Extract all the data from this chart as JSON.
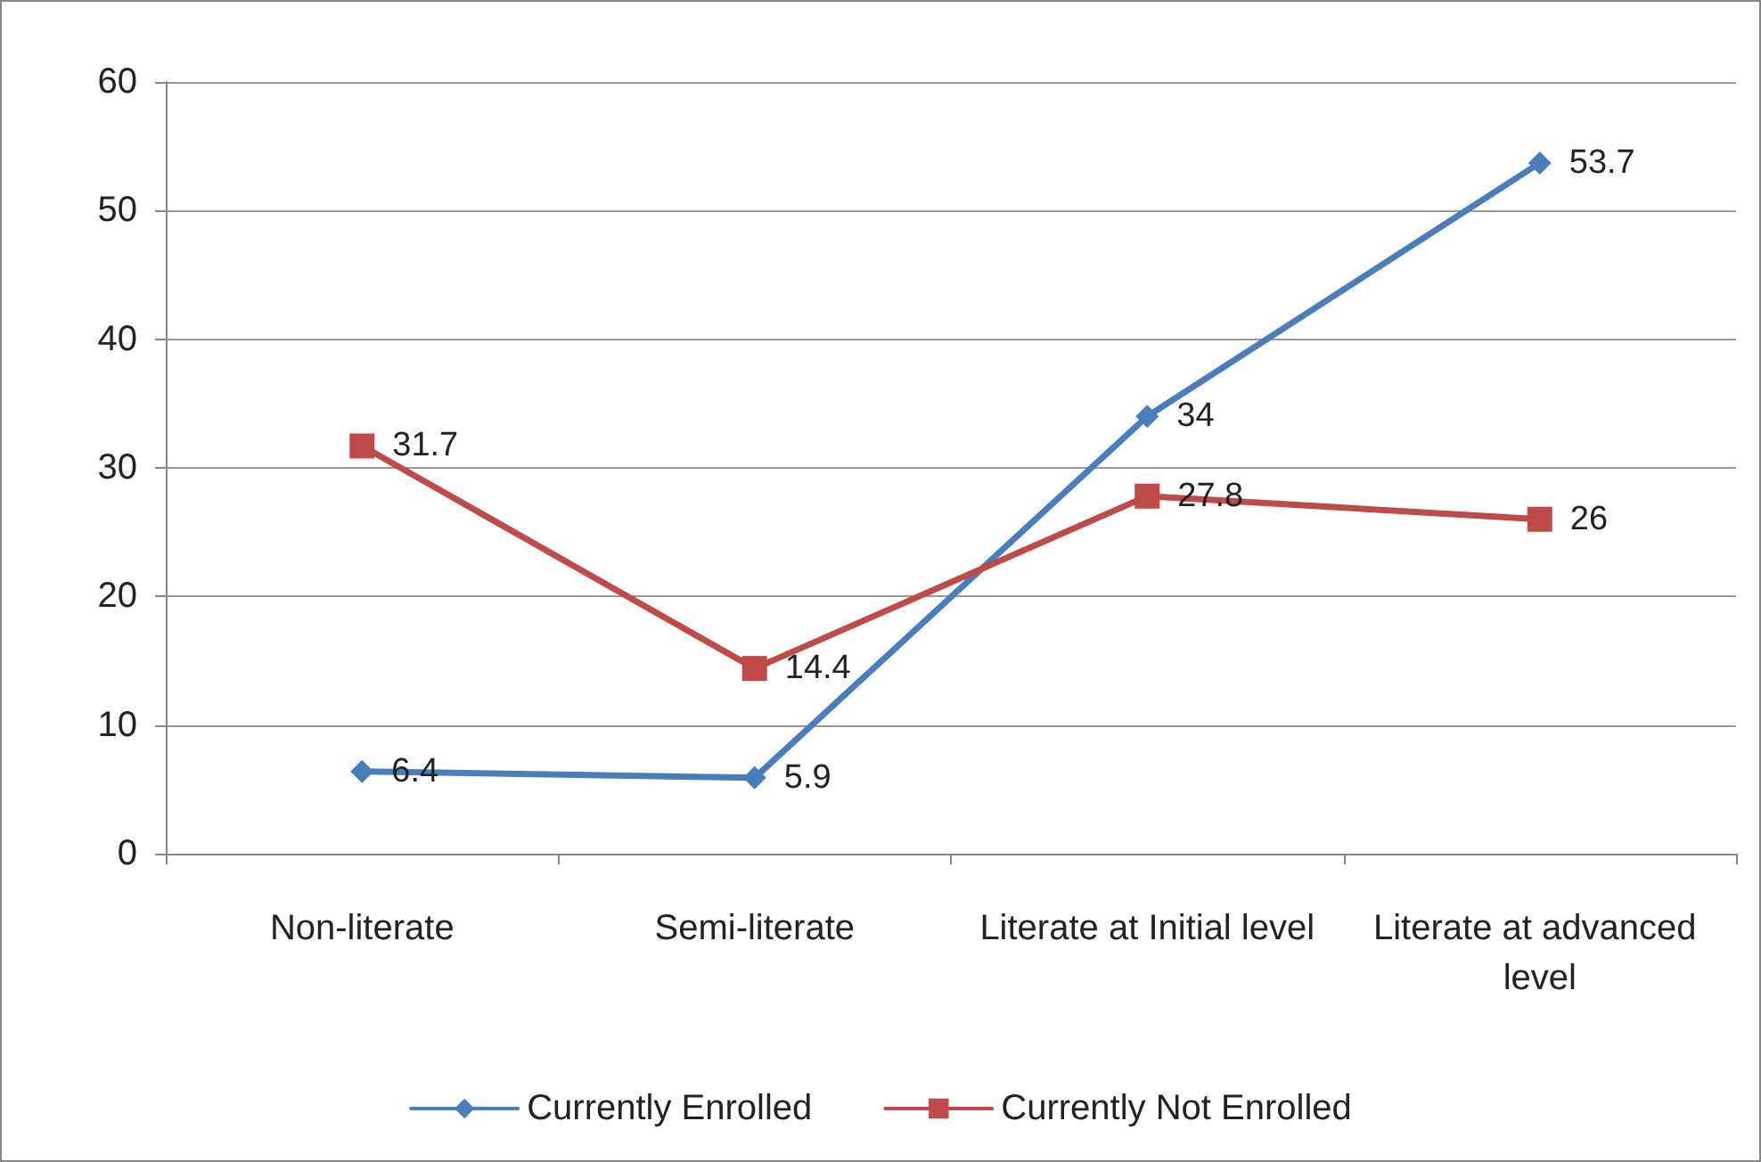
{
  "chart_data": {
    "type": "line",
    "categories": [
      "Non-literate",
      "Semi-literate",
      "Literate at Initial level",
      "Literate at advanced level"
    ],
    "series": [
      {
        "name": "Currently Enrolled",
        "color": "#4a7ebb",
        "marker": "diamond",
        "values": [
          6.4,
          5.9,
          34,
          53.7
        ]
      },
      {
        "name": "Currently Not Enrolled",
        "color": "#be4b48",
        "marker": "square",
        "values": [
          31.7,
          14.4,
          27.8,
          26
        ]
      }
    ],
    "ylim": [
      0,
      60
    ],
    "yticks": [
      0,
      10,
      20,
      30,
      40,
      50,
      60
    ],
    "grid": "y",
    "legend": "bottom",
    "data_labels": true,
    "line_style": "solid"
  }
}
